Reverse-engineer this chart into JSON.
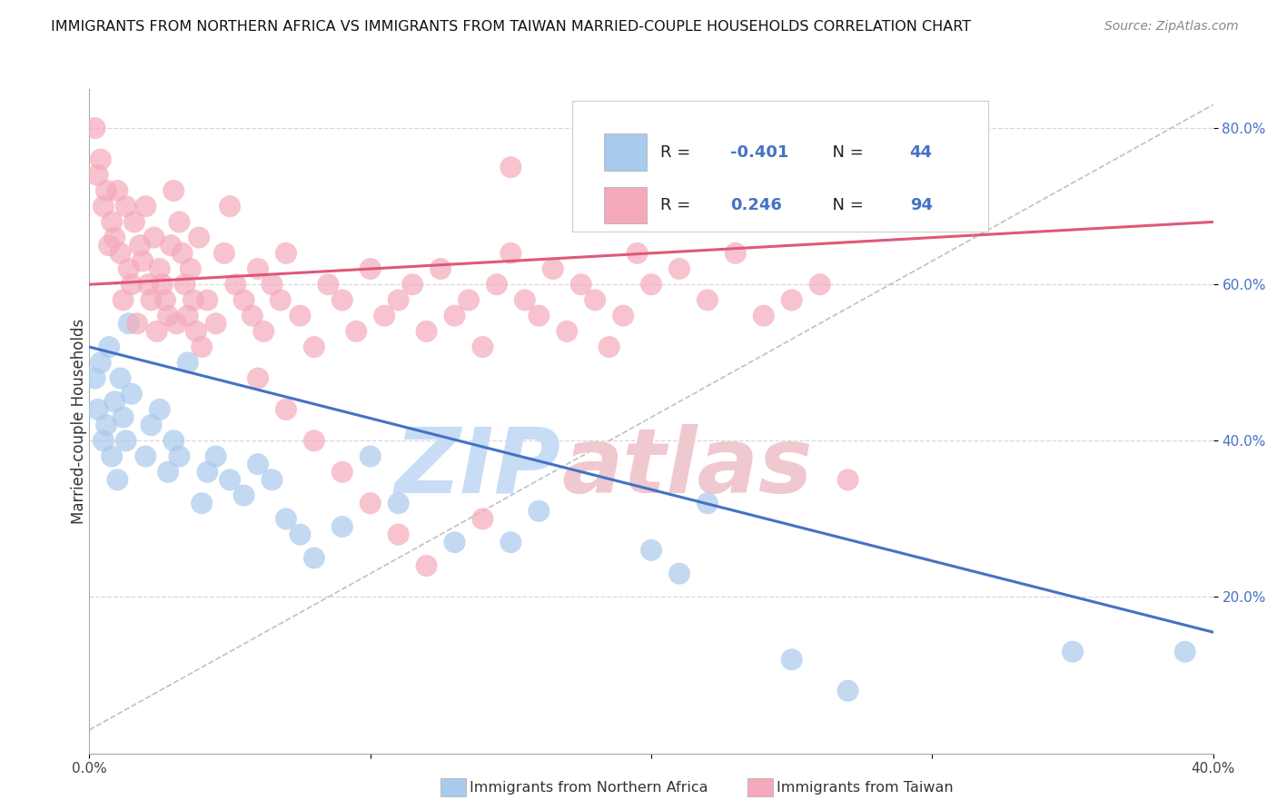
{
  "title": "IMMIGRANTS FROM NORTHERN AFRICA VS IMMIGRANTS FROM TAIWAN MARRIED-COUPLE HOUSEHOLDS CORRELATION CHART",
  "source": "Source: ZipAtlas.com",
  "xlabel_bottom": [
    "Immigrants from Northern Africa",
    "Immigrants from Taiwan"
  ],
  "ylabel": "Married-couple Households",
  "xlim": [
    0.0,
    0.4
  ],
  "ylim": [
    0.0,
    0.85
  ],
  "legend_r_blue": "-0.401",
  "legend_n_blue": "44",
  "legend_r_pink": "0.246",
  "legend_n_pink": "94",
  "blue_color": "#A8CAEC",
  "pink_color": "#F4AABB",
  "line_blue": "#4472C4",
  "line_pink": "#E05878",
  "line_gray_dashed_color": "#C0C0C0",
  "watermark_zip_color": "#C8DDF5",
  "watermark_atlas_color": "#F0C8D0",
  "blue_scatter": [
    [
      0.002,
      0.48
    ],
    [
      0.003,
      0.44
    ],
    [
      0.004,
      0.5
    ],
    [
      0.005,
      0.4
    ],
    [
      0.006,
      0.42
    ],
    [
      0.007,
      0.52
    ],
    [
      0.008,
      0.38
    ],
    [
      0.009,
      0.45
    ],
    [
      0.01,
      0.35
    ],
    [
      0.011,
      0.48
    ],
    [
      0.012,
      0.43
    ],
    [
      0.013,
      0.4
    ],
    [
      0.014,
      0.55
    ],
    [
      0.015,
      0.46
    ],
    [
      0.02,
      0.38
    ],
    [
      0.022,
      0.42
    ],
    [
      0.025,
      0.44
    ],
    [
      0.028,
      0.36
    ],
    [
      0.03,
      0.4
    ],
    [
      0.032,
      0.38
    ],
    [
      0.035,
      0.5
    ],
    [
      0.04,
      0.32
    ],
    [
      0.042,
      0.36
    ],
    [
      0.045,
      0.38
    ],
    [
      0.05,
      0.35
    ],
    [
      0.055,
      0.33
    ],
    [
      0.06,
      0.37
    ],
    [
      0.065,
      0.35
    ],
    [
      0.07,
      0.3
    ],
    [
      0.075,
      0.28
    ],
    [
      0.08,
      0.25
    ],
    [
      0.09,
      0.29
    ],
    [
      0.1,
      0.38
    ],
    [
      0.11,
      0.32
    ],
    [
      0.13,
      0.27
    ],
    [
      0.15,
      0.27
    ],
    [
      0.16,
      0.31
    ],
    [
      0.2,
      0.26
    ],
    [
      0.21,
      0.23
    ],
    [
      0.22,
      0.32
    ],
    [
      0.25,
      0.12
    ],
    [
      0.27,
      0.08
    ],
    [
      0.35,
      0.13
    ],
    [
      0.39,
      0.13
    ]
  ],
  "pink_scatter": [
    [
      0.002,
      0.8
    ],
    [
      0.003,
      0.74
    ],
    [
      0.004,
      0.76
    ],
    [
      0.005,
      0.7
    ],
    [
      0.006,
      0.72
    ],
    [
      0.007,
      0.65
    ],
    [
      0.008,
      0.68
    ],
    [
      0.009,
      0.66
    ],
    [
      0.01,
      0.72
    ],
    [
      0.011,
      0.64
    ],
    [
      0.012,
      0.58
    ],
    [
      0.013,
      0.7
    ],
    [
      0.014,
      0.62
    ],
    [
      0.015,
      0.6
    ],
    [
      0.016,
      0.68
    ],
    [
      0.017,
      0.55
    ],
    [
      0.018,
      0.65
    ],
    [
      0.019,
      0.63
    ],
    [
      0.02,
      0.7
    ],
    [
      0.021,
      0.6
    ],
    [
      0.022,
      0.58
    ],
    [
      0.023,
      0.66
    ],
    [
      0.024,
      0.54
    ],
    [
      0.025,
      0.62
    ],
    [
      0.026,
      0.6
    ],
    [
      0.027,
      0.58
    ],
    [
      0.028,
      0.56
    ],
    [
      0.029,
      0.65
    ],
    [
      0.03,
      0.72
    ],
    [
      0.031,
      0.55
    ],
    [
      0.032,
      0.68
    ],
    [
      0.033,
      0.64
    ],
    [
      0.034,
      0.6
    ],
    [
      0.035,
      0.56
    ],
    [
      0.036,
      0.62
    ],
    [
      0.037,
      0.58
    ],
    [
      0.038,
      0.54
    ],
    [
      0.039,
      0.66
    ],
    [
      0.04,
      0.52
    ],
    [
      0.042,
      0.58
    ],
    [
      0.045,
      0.55
    ],
    [
      0.048,
      0.64
    ],
    [
      0.05,
      0.7
    ],
    [
      0.052,
      0.6
    ],
    [
      0.055,
      0.58
    ],
    [
      0.058,
      0.56
    ],
    [
      0.06,
      0.62
    ],
    [
      0.062,
      0.54
    ],
    [
      0.065,
      0.6
    ],
    [
      0.068,
      0.58
    ],
    [
      0.07,
      0.64
    ],
    [
      0.075,
      0.56
    ],
    [
      0.08,
      0.52
    ],
    [
      0.085,
      0.6
    ],
    [
      0.09,
      0.58
    ],
    [
      0.095,
      0.54
    ],
    [
      0.1,
      0.62
    ],
    [
      0.105,
      0.56
    ],
    [
      0.11,
      0.58
    ],
    [
      0.115,
      0.6
    ],
    [
      0.12,
      0.54
    ],
    [
      0.125,
      0.62
    ],
    [
      0.13,
      0.56
    ],
    [
      0.135,
      0.58
    ],
    [
      0.14,
      0.52
    ],
    [
      0.145,
      0.6
    ],
    [
      0.15,
      0.64
    ],
    [
      0.155,
      0.58
    ],
    [
      0.16,
      0.56
    ],
    [
      0.165,
      0.62
    ],
    [
      0.17,
      0.54
    ],
    [
      0.175,
      0.6
    ],
    [
      0.18,
      0.58
    ],
    [
      0.185,
      0.52
    ],
    [
      0.19,
      0.56
    ],
    [
      0.195,
      0.64
    ],
    [
      0.2,
      0.6
    ],
    [
      0.21,
      0.62
    ],
    [
      0.22,
      0.58
    ],
    [
      0.23,
      0.64
    ],
    [
      0.24,
      0.56
    ],
    [
      0.25,
      0.58
    ],
    [
      0.26,
      0.6
    ],
    [
      0.27,
      0.35
    ],
    [
      0.14,
      0.3
    ],
    [
      0.15,
      0.75
    ],
    [
      0.2,
      0.72
    ],
    [
      0.06,
      0.48
    ],
    [
      0.07,
      0.44
    ],
    [
      0.08,
      0.4
    ],
    [
      0.09,
      0.36
    ],
    [
      0.1,
      0.32
    ],
    [
      0.11,
      0.28
    ],
    [
      0.12,
      0.24
    ]
  ],
  "blue_line_x": [
    0.0,
    0.4
  ],
  "blue_line_y": [
    0.52,
    0.155
  ],
  "pink_line_x": [
    0.0,
    0.4
  ],
  "pink_line_y": [
    0.6,
    0.68
  ],
  "gray_line_x": [
    0.0,
    0.4
  ],
  "gray_line_y": [
    0.03,
    0.83
  ]
}
